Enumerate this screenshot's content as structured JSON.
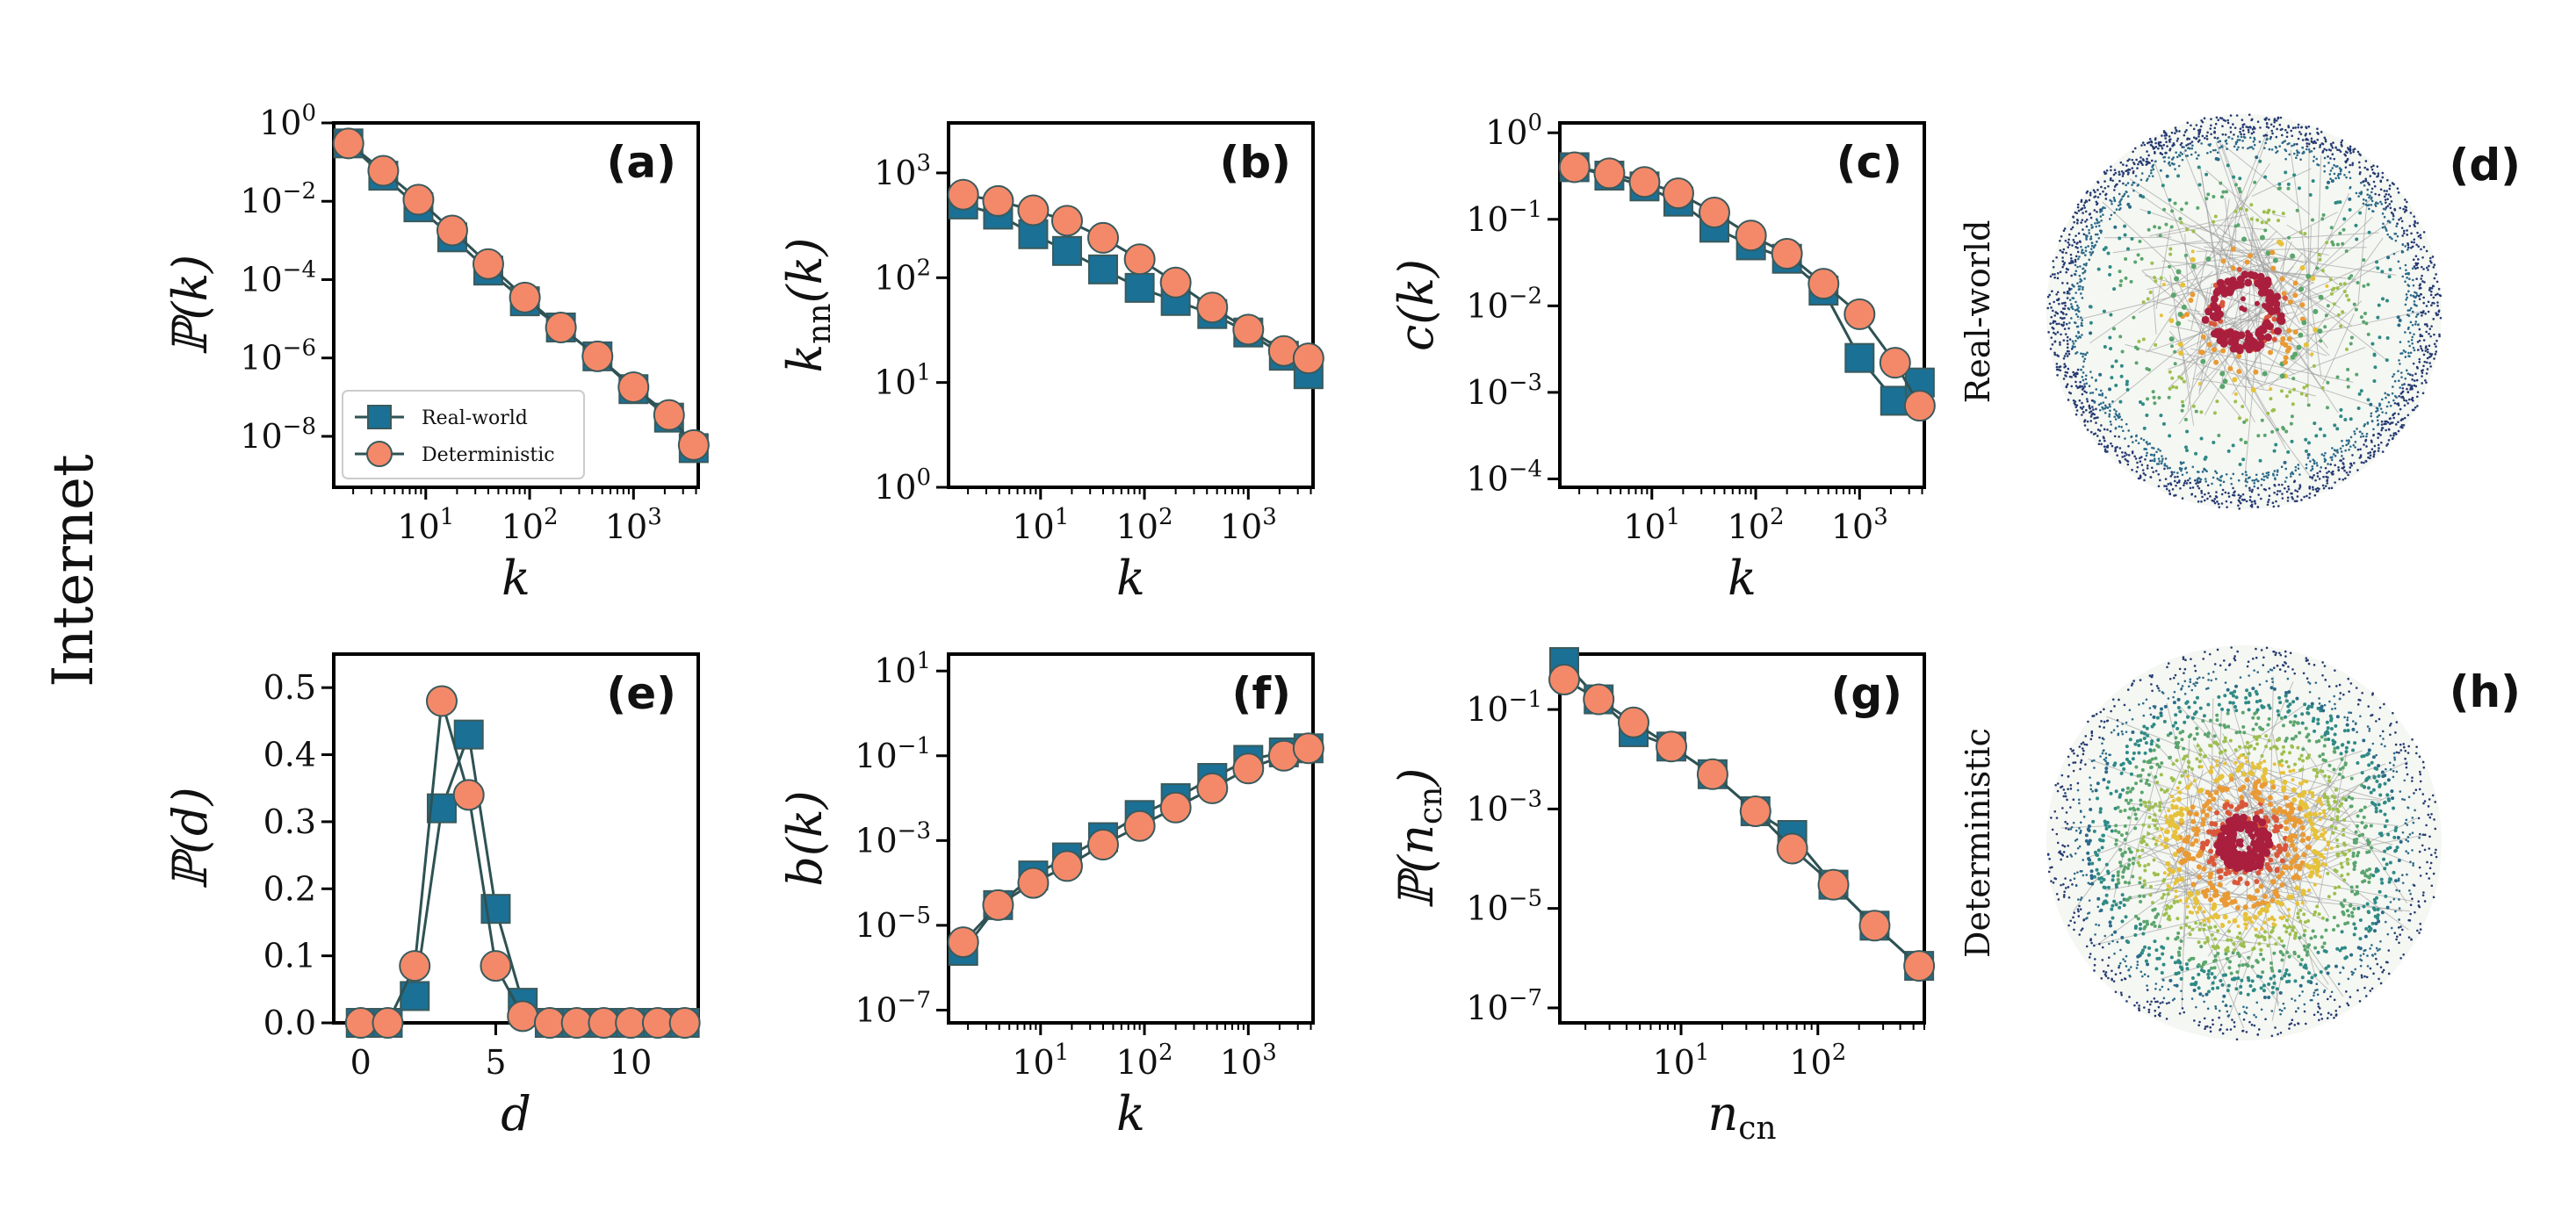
{
  "figure": {
    "row_title": "Internet",
    "colors": {
      "real_world": "#1b7096",
      "deterministic": "#f4896a",
      "edge": "#2e5254",
      "marker_edge": "#3a5a5c"
    }
  },
  "chart_data": [
    {
      "id": "a",
      "panel_label": "(a)",
      "type": "line",
      "scale": {
        "x": "log",
        "y": "log"
      },
      "xlabel": "k",
      "ylabel": "ℙ(k)",
      "xlim": [
        1.3,
        4200
      ],
      "ylim": [
        5e-10,
        1
      ],
      "x_ticks": [
        {
          "v": 10,
          "b": "10",
          "e": "1"
        },
        {
          "v": 100,
          "b": "10",
          "e": "2"
        },
        {
          "v": 1000,
          "b": "10",
          "e": "3"
        }
      ],
      "y_ticks": [
        {
          "v": 1,
          "b": "10",
          "e": "0"
        },
        {
          "v": 0.01,
          "b": "10",
          "e": "−2"
        },
        {
          "v": 0.0001,
          "b": "10",
          "e": "−4"
        },
        {
          "v": 1e-06,
          "b": "10",
          "e": "−6"
        },
        {
          "v": 1e-08,
          "b": "10",
          "e": "−8"
        }
      ],
      "legend": {
        "position": "lower-left",
        "entries": [
          "Real-world",
          "Deterministic"
        ]
      },
      "series": [
        {
          "name": "Real-world",
          "marker": "square",
          "x": [
            1.8,
            3.9,
            8.5,
            18,
            40,
            90,
            200,
            450,
            1000,
            2200,
            3800
          ],
          "y": [
            0.3,
            0.045,
            0.007,
            0.0012,
            0.00017,
            2.8e-05,
            6e-06,
            1.1e-06,
            1.6e-07,
            3e-08,
            5e-09
          ]
        },
        {
          "name": "Deterministic",
          "marker": "circle",
          "x": [
            1.8,
            3.9,
            8.5,
            18,
            40,
            90,
            200,
            450,
            1000,
            2200,
            3800
          ],
          "y": [
            0.3,
            0.06,
            0.011,
            0.0018,
            0.00025,
            3.5e-05,
            6e-06,
            1.1e-06,
            1.8e-07,
            3.5e-08,
            6e-09
          ]
        }
      ]
    },
    {
      "id": "b",
      "panel_label": "(b)",
      "type": "line",
      "scale": {
        "x": "log",
        "y": "log"
      },
      "xlabel": "k",
      "ylabel": "k_nn(k)",
      "xlim": [
        1.3,
        4200
      ],
      "ylim": [
        1,
        3000
      ],
      "x_ticks": [
        {
          "v": 10,
          "b": "10",
          "e": "1"
        },
        {
          "v": 100,
          "b": "10",
          "e": "2"
        },
        {
          "v": 1000,
          "b": "10",
          "e": "3"
        }
      ],
      "y_ticks": [
        {
          "v": 1,
          "b": "10",
          "e": "0"
        },
        {
          "v": 10,
          "b": "10",
          "e": "1"
        },
        {
          "v": 100,
          "b": "10",
          "e": "2"
        },
        {
          "v": 1000,
          "b": "10",
          "e": "3"
        }
      ],
      "series": [
        {
          "name": "Real-world",
          "marker": "square",
          "x": [
            1.8,
            3.9,
            8.5,
            18,
            40,
            90,
            200,
            450,
            1000,
            2200,
            3800
          ],
          "y": [
            500,
            400,
            260,
            180,
            120,
            80,
            60,
            45,
            30,
            18,
            12
          ]
        },
        {
          "name": "Deterministic",
          "marker": "circle",
          "x": [
            1.8,
            3.9,
            8.5,
            18,
            40,
            90,
            200,
            450,
            1000,
            2200,
            3800
          ],
          "y": [
            620,
            540,
            440,
            350,
            240,
            150,
            90,
            52,
            32,
            20,
            17
          ]
        }
      ]
    },
    {
      "id": "c",
      "panel_label": "(c)",
      "type": "line",
      "scale": {
        "x": "log",
        "y": "log"
      },
      "xlabel": "k",
      "ylabel": "c(k)",
      "xlim": [
        1.3,
        4200
      ],
      "ylim": [
        8e-05,
        1.3
      ],
      "x_ticks": [
        {
          "v": 10,
          "b": "10",
          "e": "1"
        },
        {
          "v": 100,
          "b": "10",
          "e": "2"
        },
        {
          "v": 1000,
          "b": "10",
          "e": "3"
        }
      ],
      "y_ticks": [
        {
          "v": 1,
          "b": "10",
          "e": "0"
        },
        {
          "v": 0.1,
          "b": "10",
          "e": "−1"
        },
        {
          "v": 0.01,
          "b": "10",
          "e": "−2"
        },
        {
          "v": 0.001,
          "b": "10",
          "e": "−3"
        },
        {
          "v": 0.0001,
          "b": "10",
          "e": "−4"
        }
      ],
      "series": [
        {
          "name": "Real-world",
          "marker": "square",
          "x": [
            1.8,
            3.9,
            8.5,
            18,
            40,
            90,
            200,
            450,
            1000,
            2200,
            3800
          ],
          "y": [
            0.4,
            0.32,
            0.24,
            0.16,
            0.08,
            0.05,
            0.035,
            0.015,
            0.0025,
            0.0008,
            0.0013
          ]
        },
        {
          "name": "Deterministic",
          "marker": "circle",
          "x": [
            1.8,
            3.9,
            8.5,
            18,
            40,
            90,
            200,
            450,
            1000,
            2200,
            3800
          ],
          "y": [
            0.4,
            0.34,
            0.27,
            0.2,
            0.12,
            0.065,
            0.04,
            0.018,
            0.008,
            0.0022,
            0.0007
          ]
        }
      ]
    },
    {
      "id": "e",
      "panel_label": "(e)",
      "type": "line",
      "scale": {
        "x": "linear",
        "y": "linear"
      },
      "xlabel": "d",
      "ylabel": "ℙ(d)",
      "xlim": [
        -1,
        12.5
      ],
      "ylim": [
        0,
        0.55
      ],
      "x_ticks": [
        {
          "v": 0,
          "t": "0"
        },
        {
          "v": 5,
          "t": "5"
        },
        {
          "v": 10,
          "t": "10"
        }
      ],
      "y_ticks": [
        {
          "v": 0,
          "t": "0.0"
        },
        {
          "v": 0.1,
          "t": "0.1"
        },
        {
          "v": 0.2,
          "t": "0.2"
        },
        {
          "v": 0.3,
          "t": "0.3"
        },
        {
          "v": 0.4,
          "t": "0.4"
        },
        {
          "v": 0.5,
          "t": "0.5"
        }
      ],
      "series": [
        {
          "name": "Real-world",
          "marker": "square",
          "x": [
            0,
            1,
            2,
            3,
            4,
            5,
            6,
            7,
            8,
            9,
            10,
            11,
            12
          ],
          "y": [
            0,
            0,
            0.04,
            0.32,
            0.43,
            0.17,
            0.03,
            0,
            0,
            0,
            0,
            0,
            0
          ]
        },
        {
          "name": "Deterministic",
          "marker": "circle",
          "x": [
            0,
            1,
            2,
            3,
            4,
            5,
            6,
            7,
            8,
            9,
            10,
            11,
            12
          ],
          "y": [
            0,
            0,
            0.085,
            0.48,
            0.34,
            0.085,
            0.01,
            0,
            0,
            0,
            0,
            0,
            0
          ]
        }
      ]
    },
    {
      "id": "f",
      "panel_label": "(f)",
      "type": "line",
      "scale": {
        "x": "log",
        "y": "log"
      },
      "xlabel": "k",
      "ylabel": "b(k)",
      "xlim": [
        1.3,
        4200
      ],
      "ylim": [
        5e-08,
        25
      ],
      "x_ticks": [
        {
          "v": 10,
          "b": "10",
          "e": "1"
        },
        {
          "v": 100,
          "b": "10",
          "e": "2"
        },
        {
          "v": 1000,
          "b": "10",
          "e": "3"
        }
      ],
      "y_ticks": [
        {
          "v": 10,
          "b": "10",
          "e": "1"
        },
        {
          "v": 0.1,
          "b": "10",
          "e": "−1"
        },
        {
          "v": 0.001,
          "b": "10",
          "e": "−3"
        },
        {
          "v": 1e-05,
          "b": "10",
          "e": "−5"
        },
        {
          "v": 1e-07,
          "b": "10",
          "e": "−7"
        }
      ],
      "series": [
        {
          "name": "Real-world",
          "marker": "square",
          "x": [
            1.8,
            3.9,
            8.5,
            18,
            40,
            90,
            200,
            450,
            1000,
            2200,
            3800
          ],
          "y": [
            2.5e-06,
            3e-05,
            0.00015,
            0.0004,
            0.0012,
            0.004,
            0.01,
            0.03,
            0.08,
            0.12,
            0.15
          ]
        },
        {
          "name": "Deterministic",
          "marker": "circle",
          "x": [
            1.8,
            3.9,
            8.5,
            18,
            40,
            90,
            200,
            450,
            1000,
            2200,
            3800
          ],
          "y": [
            4e-06,
            3e-05,
            0.0001,
            0.00025,
            0.0008,
            0.0022,
            0.006,
            0.017,
            0.05,
            0.1,
            0.15
          ]
        }
      ]
    },
    {
      "id": "g",
      "panel_label": "(g)",
      "type": "line",
      "scale": {
        "x": "log",
        "y": "log"
      },
      "xlabel": "n_cn",
      "ylabel": "ℙ(n_cn)",
      "xlim": [
        1.3,
        600
      ],
      "ylim": [
        5e-08,
        1.3
      ],
      "x_ticks": [
        {
          "v": 10,
          "b": "10",
          "e": "1"
        },
        {
          "v": 100,
          "b": "10",
          "e": "2"
        }
      ],
      "y_ticks": [
        {
          "v": 0.1,
          "b": "10",
          "e": "−1"
        },
        {
          "v": 0.001,
          "b": "10",
          "e": "−3"
        },
        {
          "v": 1e-05,
          "b": "10",
          "e": "−5"
        },
        {
          "v": 1e-07,
          "b": "10",
          "e": "−7"
        }
      ],
      "series": [
        {
          "name": "Real-world",
          "marker": "square",
          "x": [
            1.4,
            2.5,
            4.5,
            8.5,
            17,
            35,
            65,
            130,
            260,
            550
          ],
          "y": [
            0.9,
            0.16,
            0.035,
            0.018,
            0.005,
            0.0009,
            0.0003,
            3e-05,
            4.5e-06,
            7e-07
          ]
        },
        {
          "name": "Deterministic",
          "marker": "circle",
          "x": [
            1.4,
            2.5,
            4.5,
            8.5,
            17,
            35,
            65,
            130,
            260,
            550
          ],
          "y": [
            0.4,
            0.16,
            0.055,
            0.018,
            0.005,
            0.0009,
            0.00016,
            3e-05,
            4.5e-06,
            7e-07
          ]
        }
      ]
    }
  ],
  "networks": [
    {
      "id": "d",
      "panel_label": "(d)",
      "side_label": "Real-world"
    },
    {
      "id": "h",
      "panel_label": "(h)",
      "side_label": "Deterministic"
    }
  ]
}
